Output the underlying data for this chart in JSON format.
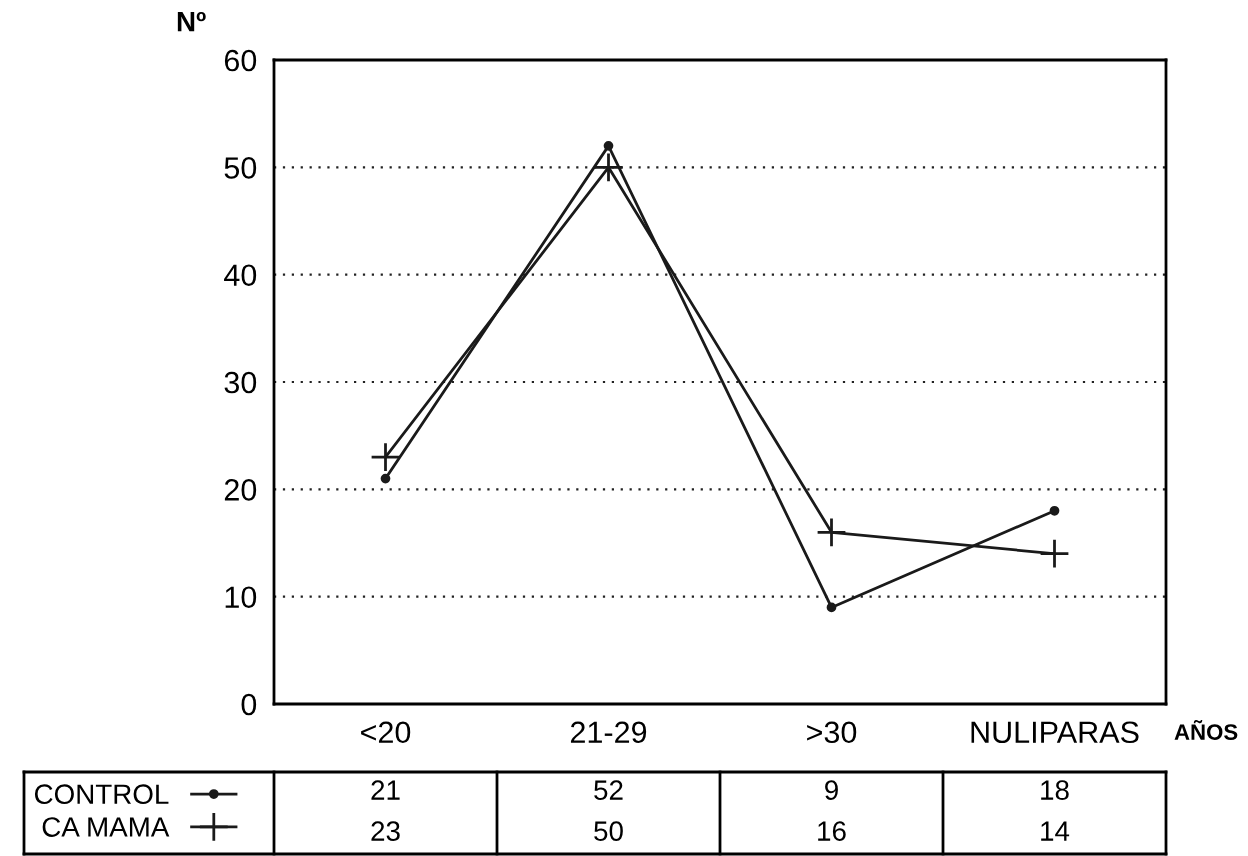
{
  "chart_data": {
    "type": "line",
    "ylabel": "Nº",
    "xlabel": "AÑOS",
    "categories": [
      "<20",
      "21-29",
      ">30",
      "NULIPARAS"
    ],
    "series": [
      {
        "name": "CONTROL",
        "color": "#1a1a1a",
        "marker": "circle",
        "values": [
          21,
          52,
          9,
          18
        ]
      },
      {
        "name": "CA MAMA",
        "color": "#1a1a1a",
        "marker": "cross",
        "values": [
          23,
          50,
          16,
          14
        ]
      }
    ],
    "ylim": [
      0,
      60
    ],
    "yticks": [
      0,
      10,
      20,
      30,
      40,
      50,
      60
    ],
    "grid": "y",
    "legend": "bottom left",
    "line_style": "solid",
    "data_labels": true
  }
}
